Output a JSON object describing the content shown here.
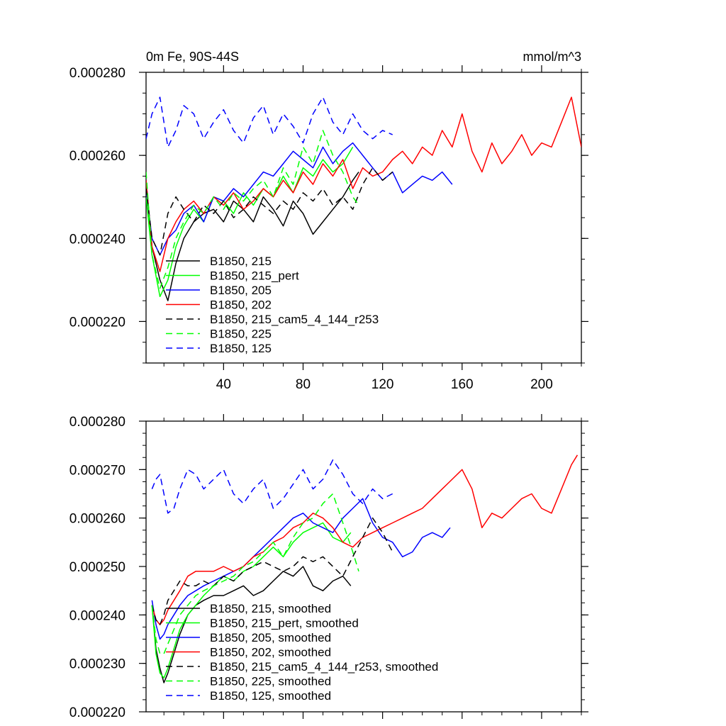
{
  "chart_data": [
    {
      "type": "line",
      "title": "0m Fe, 90S-44S",
      "units": "mmol/m^3",
      "xlim": [
        1,
        220
      ],
      "ylim": [
        0.00021,
        0.00028
      ],
      "xticks": [
        40,
        80,
        120,
        160,
        200
      ],
      "xtick_labels": [
        "40",
        "80",
        "120",
        "160",
        "200"
      ],
      "yticks": [
        0.00022,
        0.00024,
        0.00026,
        0.00028
      ],
      "ytick_labels": [
        "0.000220",
        "0.000240",
        "0.000260",
        "0.000280"
      ],
      "legend_position": "bottom-left",
      "series": [
        {
          "name": "B1850, 215",
          "color": "#000000",
          "dash": "solid",
          "x": [
            1,
            4,
            8,
            12,
            16,
            20,
            25,
            30,
            35,
            40,
            45,
            50,
            55,
            60,
            65,
            70,
            75,
            80,
            85,
            90,
            95,
            100,
            105,
            108
          ],
          "y": [
            0.000254,
            0.000238,
            0.00023,
            0.000225,
            0.000234,
            0.00024,
            0.000244,
            0.000246,
            0.000247,
            0.000244,
            0.000249,
            0.000247,
            0.000244,
            0.00025,
            0.000247,
            0.000243,
            0.000249,
            0.000246,
            0.000241,
            0.000244,
            0.000247,
            0.00025,
            0.000254,
            0.000256
          ]
        },
        {
          "name": "B1850, 215_pert",
          "color": "#00ff00",
          "dash": "solid",
          "x": [
            1,
            4,
            8,
            12,
            16,
            20,
            25,
            30,
            35,
            40,
            45,
            50,
            55,
            60,
            65,
            70,
            75,
            80,
            85,
            90,
            95,
            100,
            105
          ],
          "y": [
            0.00025,
            0.000236,
            0.000226,
            0.00023,
            0.000238,
            0.000243,
            0.000247,
            0.000244,
            0.00025,
            0.000249,
            0.000246,
            0.000251,
            0.000248,
            0.000252,
            0.00025,
            0.000255,
            0.000251,
            0.000257,
            0.000255,
            0.000259,
            0.000256,
            0.000258,
            0.000262
          ]
        },
        {
          "name": "B1850, 205",
          "color": "#0000ff",
          "dash": "solid",
          "x": [
            1,
            4,
            8,
            12,
            16,
            20,
            25,
            30,
            35,
            40,
            45,
            50,
            55,
            60,
            65,
            70,
            75,
            80,
            85,
            90,
            95,
            100,
            105,
            110,
            115,
            120,
            125,
            130,
            135,
            140,
            145,
            150,
            155
          ],
          "y": [
            0.000252,
            0.00024,
            0.000236,
            0.00024,
            0.000242,
            0.000246,
            0.000248,
            0.000244,
            0.00025,
            0.000249,
            0.000252,
            0.00025,
            0.000253,
            0.000256,
            0.000255,
            0.000258,
            0.000261,
            0.000259,
            0.000257,
            0.000262,
            0.000258,
            0.000261,
            0.000263,
            0.00026,
            0.000257,
            0.000254,
            0.000256,
            0.000251,
            0.000253,
            0.000255,
            0.000254,
            0.000256,
            0.000253
          ]
        },
        {
          "name": "B1850, 202",
          "color": "#ff0000",
          "dash": "solid",
          "x": [
            1,
            4,
            8,
            12,
            16,
            20,
            25,
            30,
            35,
            40,
            45,
            50,
            55,
            60,
            65,
            70,
            75,
            80,
            85,
            90,
            95,
            100,
            105,
            110,
            115,
            120,
            125,
            130,
            135,
            140,
            145,
            150,
            155,
            160,
            165,
            170,
            175,
            180,
            185,
            190,
            195,
            200,
            205,
            210,
            215,
            220
          ],
          "y": [
            0.000254,
            0.000238,
            0.000232,
            0.00024,
            0.000244,
            0.000247,
            0.000249,
            0.000246,
            0.00025,
            0.000248,
            0.000251,
            0.000247,
            0.000249,
            0.000252,
            0.00025,
            0.000254,
            0.000251,
            0.000256,
            0.000253,
            0.000258,
            0.000255,
            0.000259,
            0.000252,
            0.000257,
            0.000255,
            0.000256,
            0.000259,
            0.000261,
            0.000258,
            0.000262,
            0.00026,
            0.000266,
            0.000262,
            0.00027,
            0.000261,
            0.000256,
            0.000263,
            0.000258,
            0.000261,
            0.000265,
            0.00026,
            0.000263,
            0.000262,
            0.000268,
            0.000274,
            0.000262
          ]
        },
        {
          "name": "B1850, 215_cam5_4_144_r253",
          "color": "#000000",
          "dash": "dashed",
          "x": [
            1,
            4,
            8,
            12,
            16,
            20,
            25,
            30,
            35,
            40,
            45,
            50,
            55,
            60,
            65,
            70,
            75,
            80,
            85,
            90,
            95,
            100,
            105,
            110,
            115,
            120,
            125
          ],
          "y": [
            0.000252,
            0.00024,
            0.000236,
            0.000246,
            0.00025,
            0.000247,
            0.000244,
            0.000248,
            0.000246,
            0.000249,
            0.000245,
            0.000247,
            0.00025,
            0.000248,
            0.000246,
            0.000249,
            0.000247,
            0.000251,
            0.000249,
            0.000252,
            0.000248,
            0.00025,
            0.000247,
            0.000253,
            0.000257,
            0.000254,
            0.000256
          ]
        },
        {
          "name": "B1850, 225",
          "color": "#00ff00",
          "dash": "dashed",
          "x": [
            1,
            4,
            8,
            12,
            16,
            20,
            25,
            30,
            35,
            40,
            45,
            50,
            55,
            60,
            65,
            70,
            75,
            80,
            85,
            90,
            95,
            100,
            105,
            108
          ],
          "y": [
            0.000256,
            0.000236,
            0.000228,
            0.000233,
            0.00024,
            0.000244,
            0.000248,
            0.000246,
            0.00025,
            0.000247,
            0.000251,
            0.000249,
            0.000252,
            0.000254,
            0.00025,
            0.000257,
            0.000253,
            0.000262,
            0.000258,
            0.000266,
            0.00026,
            0.000256,
            0.00025,
            0.000248
          ]
        },
        {
          "name": "B1850, 125",
          "color": "#0000ff",
          "dash": "dashed",
          "x": [
            1,
            4,
            8,
            12,
            16,
            20,
            25,
            30,
            35,
            40,
            45,
            50,
            55,
            60,
            65,
            70,
            75,
            80,
            85,
            90,
            95,
            100,
            105,
            110,
            115,
            120,
            125
          ],
          "y": [
            0.000264,
            0.00027,
            0.000274,
            0.000262,
            0.000266,
            0.000272,
            0.00027,
            0.000264,
            0.000268,
            0.000271,
            0.000266,
            0.000263,
            0.000269,
            0.000272,
            0.000265,
            0.00027,
            0.000267,
            0.000263,
            0.00027,
            0.000274,
            0.000268,
            0.000265,
            0.00027,
            0.000266,
            0.000264,
            0.000266,
            0.000265
          ]
        }
      ]
    },
    {
      "type": "line",
      "title": "",
      "xlim": [
        1,
        220
      ],
      "ylim": [
        0.00022,
        0.00028
      ],
      "xticks": [
        40,
        80,
        120,
        160,
        200
      ],
      "xtick_labels": [],
      "yticks": [
        0.00022,
        0.00023,
        0.00024,
        0.00025,
        0.00026,
        0.00027,
        0.00028
      ],
      "ytick_labels": [
        "0.000220",
        "0.000230",
        "0.000240",
        "0.000250",
        "0.000260",
        "0.000270",
        "0.000280"
      ],
      "legend_position": "bottom-left",
      "series": [
        {
          "name": "B1850, 215, smoothed",
          "color": "#000000",
          "dash": "solid",
          "x": [
            4,
            6,
            8,
            10,
            12,
            15,
            18,
            22,
            26,
            30,
            35,
            40,
            45,
            50,
            55,
            60,
            65,
            70,
            75,
            80,
            85,
            90,
            95,
            100,
            104
          ],
          "y": [
            0.000242,
            0.000233,
            0.000229,
            0.000226,
            0.000228,
            0.000232,
            0.000236,
            0.00024,
            0.000242,
            0.000243,
            0.000244,
            0.000244,
            0.000245,
            0.000246,
            0.000244,
            0.000245,
            0.000247,
            0.000249,
            0.000248,
            0.00025,
            0.000246,
            0.000245,
            0.000247,
            0.000248,
            0.000246
          ]
        },
        {
          "name": "B1850, 215_pert, smoothed",
          "color": "#00ff00",
          "dash": "solid",
          "x": [
            4,
            6,
            8,
            10,
            12,
            15,
            18,
            22,
            26,
            30,
            35,
            40,
            45,
            50,
            55,
            60,
            65,
            70,
            75,
            80,
            85,
            90,
            95,
            100,
            104
          ],
          "y": [
            0.000242,
            0.000232,
            0.000228,
            0.000227,
            0.000229,
            0.000233,
            0.000237,
            0.00024,
            0.000242,
            0.000244,
            0.000246,
            0.000248,
            0.000247,
            0.000249,
            0.00025,
            0.000252,
            0.000254,
            0.000252,
            0.000255,
            0.000257,
            0.000258,
            0.000259,
            0.000256,
            0.000255,
            0.000257
          ]
        },
        {
          "name": "B1850, 205, smoothed",
          "color": "#0000ff",
          "dash": "solid",
          "x": [
            4,
            6,
            8,
            10,
            12,
            15,
            18,
            22,
            26,
            30,
            35,
            40,
            45,
            50,
            55,
            60,
            65,
            70,
            75,
            80,
            85,
            90,
            95,
            100,
            105,
            110,
            115,
            120,
            125,
            130,
            135,
            140,
            145,
            150,
            154
          ],
          "y": [
            0.000243,
            0.000238,
            0.000235,
            0.000236,
            0.000238,
            0.00024,
            0.000242,
            0.000244,
            0.000245,
            0.000246,
            0.000247,
            0.000248,
            0.000249,
            0.00025,
            0.000252,
            0.000254,
            0.000256,
            0.000258,
            0.00026,
            0.000261,
            0.000259,
            0.000258,
            0.000257,
            0.00026,
            0.000262,
            0.000264,
            0.000259,
            0.000256,
            0.000255,
            0.000252,
            0.000253,
            0.000256,
            0.000257,
            0.000256,
            0.000258
          ]
        },
        {
          "name": "B1850, 202, smoothed",
          "color": "#ff0000",
          "dash": "solid",
          "x": [
            4,
            6,
            8,
            10,
            12,
            15,
            18,
            22,
            26,
            30,
            35,
            40,
            45,
            50,
            55,
            60,
            65,
            70,
            75,
            80,
            85,
            90,
            95,
            100,
            105,
            110,
            115,
            120,
            125,
            130,
            135,
            140,
            145,
            150,
            155,
            160,
            165,
            170,
            175,
            180,
            185,
            190,
            195,
            200,
            205,
            210,
            215,
            218
          ],
          "y": [
            0.000242,
            0.000239,
            0.000238,
            0.000239,
            0.000241,
            0.000243,
            0.000245,
            0.000248,
            0.000249,
            0.000249,
            0.000249,
            0.00025,
            0.000249,
            0.00025,
            0.000252,
            0.000253,
            0.000255,
            0.000256,
            0.000258,
            0.000259,
            0.000261,
            0.00026,
            0.000258,
            0.000255,
            0.000254,
            0.000256,
            0.000257,
            0.000258,
            0.000259,
            0.00026,
            0.000261,
            0.000262,
            0.000264,
            0.000266,
            0.000268,
            0.00027,
            0.000266,
            0.000258,
            0.000261,
            0.00026,
            0.000262,
            0.000264,
            0.000265,
            0.000262,
            0.000261,
            0.000266,
            0.000271,
            0.000273
          ]
        },
        {
          "name": "B1850, 215_cam5_4_144_r253, smoothed",
          "color": "#000000",
          "dash": "dashed",
          "x": [
            4,
            6,
            8,
            10,
            12,
            15,
            18,
            22,
            26,
            30,
            35,
            40,
            45,
            50,
            55,
            60,
            65,
            70,
            75,
            80,
            85,
            90,
            95,
            100,
            105,
            110,
            115,
            120,
            125
          ],
          "y": [
            0.000242,
            0.000239,
            0.000238,
            0.00024,
            0.000243,
            0.000245,
            0.000247,
            0.000246,
            0.000246,
            0.000247,
            0.000246,
            0.000248,
            0.000247,
            0.000249,
            0.00025,
            0.000251,
            0.00025,
            0.000249,
            0.00025,
            0.000252,
            0.000251,
            0.000252,
            0.00025,
            0.000248,
            0.000252,
            0.000256,
            0.00026,
            0.000257,
            0.000253
          ]
        },
        {
          "name": "B1850, 225, smoothed",
          "color": "#00ff00",
          "dash": "dashed",
          "x": [
            4,
            6,
            8,
            10,
            12,
            15,
            18,
            22,
            26,
            30,
            35,
            40,
            45,
            50,
            55,
            60,
            65,
            70,
            75,
            80,
            85,
            90,
            95,
            100,
            105,
            108
          ],
          "y": [
            0.000242,
            0.000235,
            0.000232,
            0.000232,
            0.000234,
            0.000237,
            0.00024,
            0.000242,
            0.000244,
            0.000245,
            0.000246,
            0.000247,
            0.000248,
            0.00025,
            0.000251,
            0.000253,
            0.000255,
            0.000252,
            0.000256,
            0.000259,
            0.00026,
            0.000263,
            0.000265,
            0.000259,
            0.000253,
            0.000249
          ]
        },
        {
          "name": "B1850, 125, smoothed",
          "color": "#0000ff",
          "dash": "dashed",
          "x": [
            4,
            6,
            8,
            10,
            12,
            15,
            18,
            22,
            26,
            30,
            35,
            40,
            45,
            50,
            55,
            60,
            65,
            70,
            75,
            80,
            85,
            90,
            95,
            100,
            105,
            110,
            115,
            120,
            125
          ],
          "y": [
            0.000266,
            0.000268,
            0.000269,
            0.000265,
            0.000261,
            0.000262,
            0.000266,
            0.00027,
            0.000269,
            0.000266,
            0.000268,
            0.00027,
            0.000265,
            0.000263,
            0.000266,
            0.000268,
            0.000262,
            0.000264,
            0.000267,
            0.00027,
            0.000266,
            0.000268,
            0.000272,
            0.000269,
            0.000265,
            0.000263,
            0.000266,
            0.000264,
            0.000265
          ]
        }
      ]
    }
  ]
}
